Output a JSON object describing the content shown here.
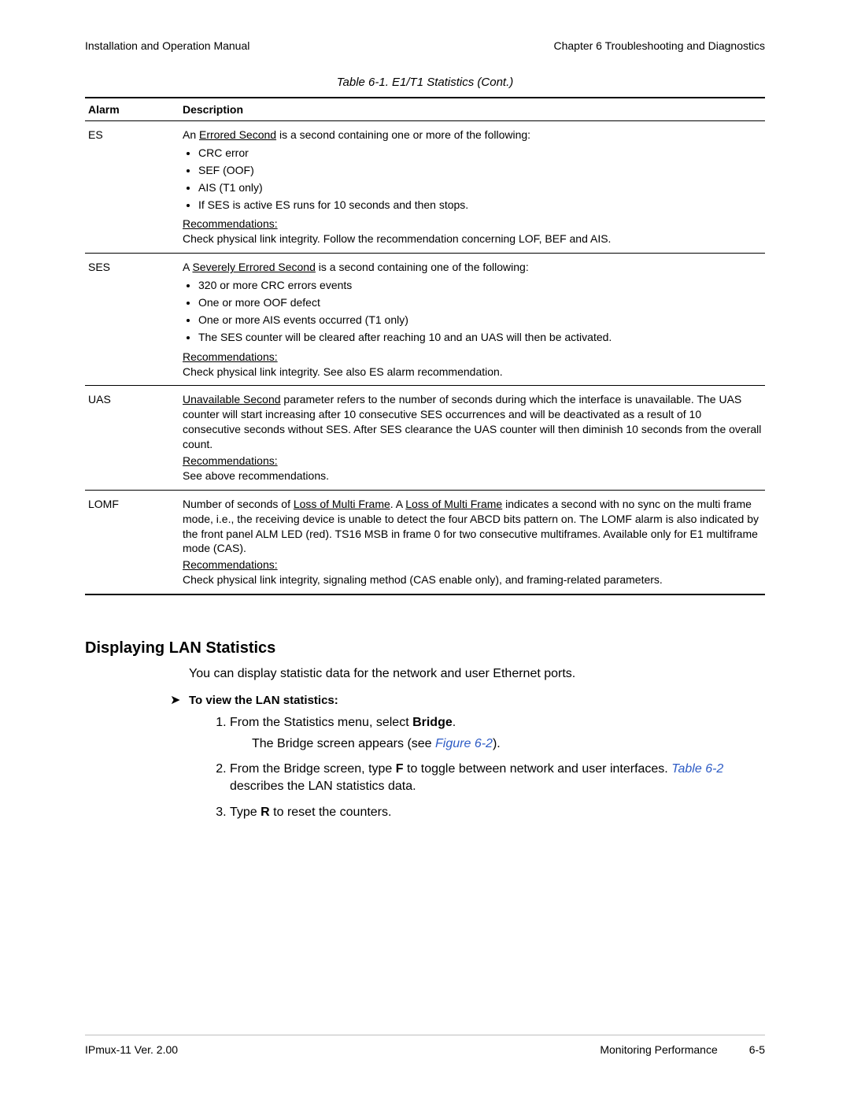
{
  "header": {
    "left": "Installation and Operation Manual",
    "right": "Chapter 6  Troubleshooting and Diagnostics"
  },
  "table_caption": "Table 6-1.  E1/T1 Statistics (Cont.)",
  "table": {
    "columns": [
      "Alarm",
      "Description"
    ],
    "rows": [
      {
        "alarm": "ES",
        "intro_pre": "An ",
        "intro_u": "Errored Second",
        "intro_post": " is a second containing one or more of the following:",
        "bullets": [
          "CRC error",
          "SEF (OOF)",
          "AIS (T1 only)",
          "If SES is active ES runs for 10 seconds and then stops."
        ],
        "rec_label": "Recommendations:",
        "rec_text": "Check physical link integrity. Follow the recommendation concerning LOF, BEF and AIS."
      },
      {
        "alarm": "SES",
        "intro_pre": "A ",
        "intro_u": "Severely Errored Second",
        "intro_post": " is a second containing one of the following:",
        "bullets": [
          "320 or more CRC errors events",
          "One or more OOF defect",
          "One or more AIS events occurred (T1 only)",
          "The SES counter will be cleared after reaching 10 and an UAS will then be activated."
        ],
        "rec_label": "Recommendations:",
        "rec_text": "Check physical link integrity. See also ES alarm recommendation."
      },
      {
        "alarm": "UAS",
        "intro_u": "Unavailable Second",
        "intro_post": " parameter refers to the number of seconds during which the interface is unavailable. The UAS counter will start increasing after 10 consecutive SES occurrences and will be deactivated as a result of 10 consecutive seconds without SES. After SES clearance the UAS counter will then diminish 10 seconds from the overall count.",
        "rec_label": "Recommendations:",
        "rec_text": "See above recommendations."
      },
      {
        "alarm": "LOMF",
        "para_parts": {
          "p1": "Number of seconds of ",
          "u1": "Loss of Multi Frame",
          "p2": ". A ",
          "u2": "Loss of Multi Frame",
          "p3": " indicates a second with no sync on the multi frame mode, i.e., the receiving device is unable to detect the four ABCD bits pattern on. The LOMF alarm is also indicated by the front panel ALM LED (red). TS16 MSB in frame 0 for two consecutive multiframes. Available only for E1 multiframe mode (CAS)."
        },
        "rec_label": "Recommendations:",
        "rec_text": "Check physical link integrity, signaling method (CAS enable only), and framing-related parameters."
      }
    ]
  },
  "section": {
    "title": "Displaying LAN Statistics",
    "intro": "You can display statistic data for the network and user Ethernet ports.",
    "procedure_title": "To view the LAN statistics:",
    "steps": {
      "s1a": "From the Statistics menu, select ",
      "s1b": "Bridge",
      "s1c": ".",
      "s1_sub_a": "The Bridge screen appears (see ",
      "s1_sub_link": "Figure 6-2",
      "s1_sub_b": ").",
      "s2a": "From the Bridge screen, type ",
      "s2b": "F",
      "s2c": " to toggle between network and user interfaces. ",
      "s2_link": "Table 6-2",
      "s2d": " describes the LAN statistics data.",
      "s3a": "Type ",
      "s3b": "R",
      "s3c": " to reset the counters."
    }
  },
  "footer": {
    "left": "IPmux-11 Ver. 2.00",
    "center": "Monitoring Performance",
    "page": "6-5"
  }
}
